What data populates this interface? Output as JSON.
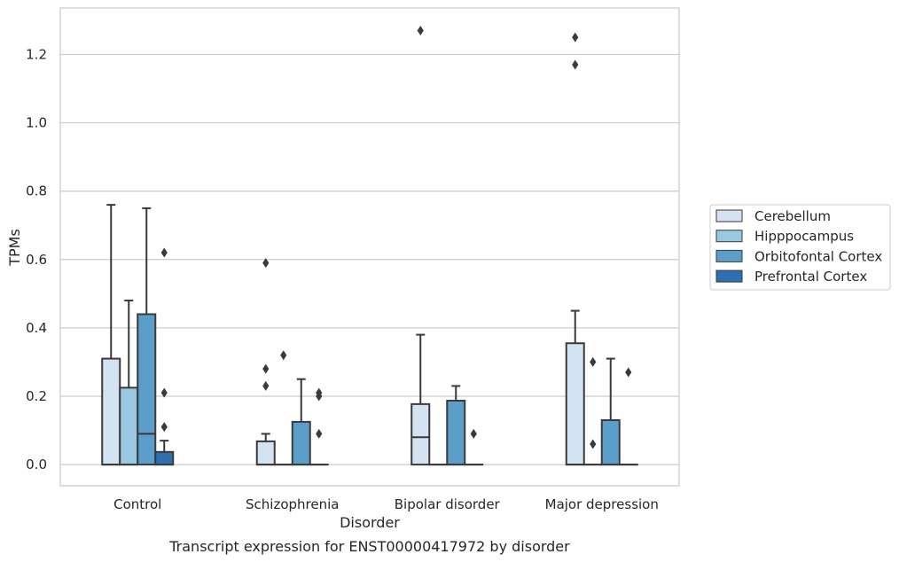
{
  "chart_data": {
    "type": "boxplot",
    "caption": "Transcript expression for ENST00000417972 by disorder",
    "xlabel": "Disorder",
    "ylabel": "TPMs",
    "ylim": [
      -0.062,
      1.336
    ],
    "yticks": [
      0.0,
      0.2,
      0.4,
      0.6,
      0.8,
      1.0,
      1.2
    ],
    "ytick_labels": [
      "0.0",
      "0.2",
      "0.4",
      "0.6",
      "0.8",
      "1.0",
      "1.2"
    ],
    "grid": "horizontal",
    "legend_position": "right",
    "categories": [
      "Control",
      "Schizophrenia",
      "Bipolar disorder",
      "Major depression"
    ],
    "series": [
      {
        "name": "Cerebellum",
        "color": "#d3e3f1",
        "boxes": [
          {
            "min": 0.0,
            "q1": 0.0,
            "median": 0.0,
            "q3": 0.31,
            "max": 0.76,
            "outliers": []
          },
          {
            "min": 0.0,
            "q1": 0.0,
            "median": 0.0,
            "q3": 0.068,
            "max": 0.09,
            "outliers": [
              0.59,
              0.28,
              0.23
            ]
          },
          {
            "min": 0.0,
            "q1": 0.0,
            "median": 0.08,
            "q3": 0.177,
            "max": 0.38,
            "outliers": [
              1.27
            ]
          },
          {
            "min": 0.0,
            "q1": 0.0,
            "median": 0.0,
            "q3": 0.355,
            "max": 0.45,
            "outliers": [
              1.25,
              1.17
            ]
          }
        ]
      },
      {
        "name": "Hipppocampus",
        "color": "#9ac8e0",
        "boxes": [
          {
            "min": 0.0,
            "q1": 0.0,
            "median": 0.0,
            "q3": 0.225,
            "max": 0.48,
            "outliers": []
          },
          {
            "min": 0.0,
            "q1": 0.0,
            "median": 0.0,
            "q3": 0.0,
            "max": 0.0,
            "outliers": [
              0.32
            ]
          },
          {
            "min": 0.0,
            "q1": 0.0,
            "median": 0.0,
            "q3": 0.0,
            "max": 0.0,
            "outliers": []
          },
          {
            "min": 0.0,
            "q1": 0.0,
            "median": 0.0,
            "q3": 0.0,
            "max": 0.0,
            "outliers": [
              0.3,
              0.06
            ]
          }
        ]
      },
      {
        "name": "Orbitofontal Cortex",
        "color": "#5a9ec9",
        "boxes": [
          {
            "min": 0.0,
            "q1": 0.0,
            "median": 0.09,
            "q3": 0.44,
            "max": 0.75,
            "outliers": []
          },
          {
            "min": 0.0,
            "q1": 0.0,
            "median": 0.0,
            "q3": 0.125,
            "max": 0.25,
            "outliers": []
          },
          {
            "min": 0.0,
            "q1": 0.0,
            "median": 0.0,
            "q3": 0.187,
            "max": 0.23,
            "outliers": []
          },
          {
            "min": 0.0,
            "q1": 0.0,
            "median": 0.0,
            "q3": 0.13,
            "max": 0.31,
            "outliers": []
          }
        ]
      },
      {
        "name": "Prefrontal Cortex",
        "color": "#2d6fb0",
        "boxes": [
          {
            "min": 0.0,
            "q1": 0.0,
            "median": 0.0,
            "q3": 0.037,
            "max": 0.07,
            "outliers": [
              0.62,
              0.21,
              0.11
            ]
          },
          {
            "min": 0.0,
            "q1": 0.0,
            "median": 0.0,
            "q3": 0.0,
            "max": 0.0,
            "outliers": [
              0.21,
              0.2,
              0.09
            ]
          },
          {
            "min": 0.0,
            "q1": 0.0,
            "median": 0.0,
            "q3": 0.0,
            "max": 0.0,
            "outliers": [
              0.09
            ]
          },
          {
            "min": 0.0,
            "q1": 0.0,
            "median": 0.0,
            "q3": 0.0,
            "max": 0.0,
            "outliers": [
              0.27
            ]
          }
        ]
      }
    ]
  }
}
